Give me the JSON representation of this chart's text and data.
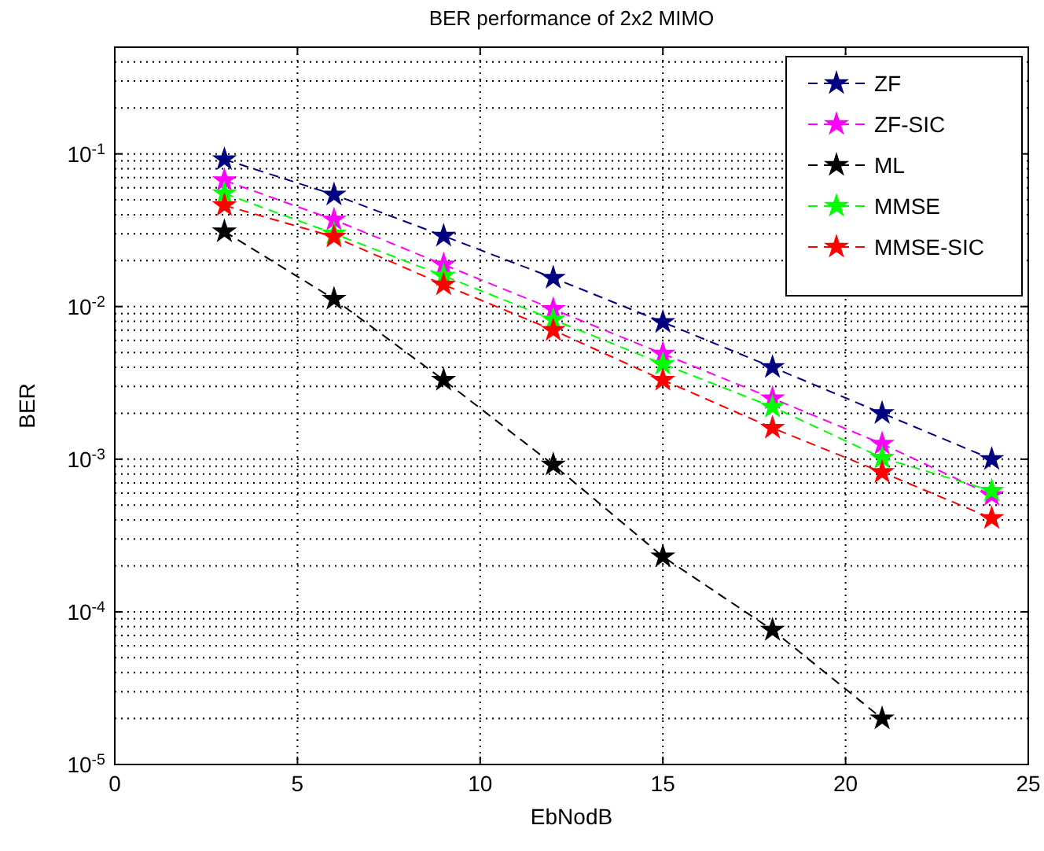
{
  "chart_data": {
    "type": "line",
    "title": "BER performance of 2x2 MIMO",
    "xlabel": "EbNodB",
    "ylabel": "BER",
    "x": [
      3,
      6,
      9,
      12,
      15,
      18,
      21,
      24
    ],
    "series": [
      {
        "name": "ZF",
        "color": "#000080",
        "values": [
          0.092,
          0.054,
          0.029,
          0.0154,
          0.0079,
          0.004,
          0.002,
          0.001
        ]
      },
      {
        "name": "ZF-SIC",
        "color": "#ff00ff",
        "values": [
          0.067,
          0.037,
          0.0188,
          0.0096,
          0.0049,
          0.0025,
          0.00126,
          0.00058
        ]
      },
      {
        "name": "ML",
        "color": "#000000",
        "values": [
          0.031,
          0.0112,
          0.0033,
          0.00092,
          0.00023,
          7.6e-05,
          2e-05,
          null
        ]
      },
      {
        "name": "MMSE",
        "color": "#00ff00",
        "values": [
          0.055,
          0.03,
          0.0159,
          0.0082,
          0.0042,
          0.0022,
          0.00102,
          0.00062
        ]
      },
      {
        "name": "MMSE-SIC",
        "color": "#ff0000",
        "values": [
          0.046,
          0.0286,
          0.0139,
          0.007,
          0.0033,
          0.0016,
          0.00082,
          0.00041
        ]
      }
    ],
    "xlim": [
      0,
      25
    ],
    "xticks": [
      0,
      5,
      10,
      15,
      20,
      25
    ],
    "ylim": [
      1e-05,
      0.5
    ],
    "yticks": [
      {
        "value": 0.1,
        "label": "10$^{-1}$"
      },
      {
        "value": 0.01,
        "label": "10$^{-2}$"
      },
      {
        "value": 0.001,
        "label": "10$^{-3}$"
      },
      {
        "value": 0.0001,
        "label": "10$^{-4}$"
      },
      {
        "value": 1e-05,
        "label": "10$^{-5}$"
      }
    ],
    "log": "y",
    "grid": true,
    "legend": "top right",
    "marker": "star",
    "line_style": "dashed"
  }
}
